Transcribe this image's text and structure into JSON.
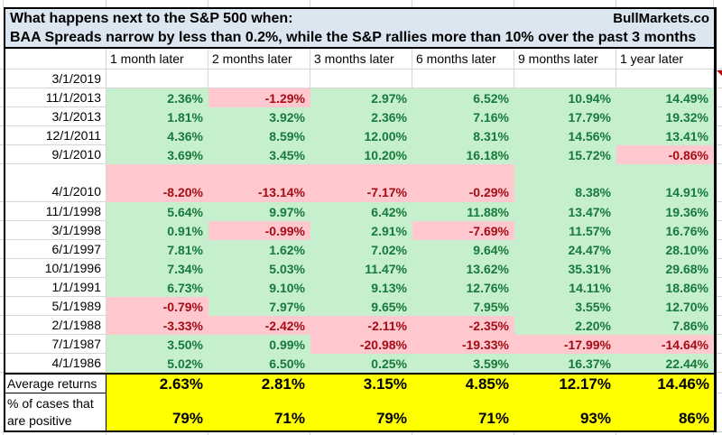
{
  "title": {
    "line1": "What happens next to the S&P 500 when:",
    "line2": "BAA Spreads narrow by less than 0.2%, while the S&P rallies more than 10% over the past 3 months",
    "brand": "BullMarkets.co"
  },
  "columns": [
    "1 month later",
    "2 months later",
    "3 months later",
    "6 months later",
    "9 months later",
    "1 year later"
  ],
  "rows": [
    {
      "date": "3/1/2019",
      "tall": false,
      "values": [
        "",
        "",
        "",
        "",
        "",
        ""
      ]
    },
    {
      "date": "11/1/2013",
      "tall": false,
      "values": [
        "2.36%",
        "-1.29%",
        "2.97%",
        "6.52%",
        "10.94%",
        "14.49%"
      ]
    },
    {
      "date": "3/1/2013",
      "tall": false,
      "values": [
        "1.81%",
        "3.92%",
        "2.36%",
        "7.16%",
        "17.79%",
        "19.32%"
      ]
    },
    {
      "date": "12/1/2011",
      "tall": false,
      "values": [
        "4.36%",
        "8.59%",
        "12.00%",
        "8.31%",
        "14.56%",
        "13.41%"
      ]
    },
    {
      "date": "9/1/2010",
      "tall": false,
      "values": [
        "3.69%",
        "3.45%",
        "10.20%",
        "16.18%",
        "15.72%",
        "-0.86%"
      ]
    },
    {
      "date": "4/1/2010",
      "tall": true,
      "values": [
        "-8.20%",
        "-13.14%",
        "-7.17%",
        "-0.29%",
        "8.38%",
        "14.91%"
      ]
    },
    {
      "date": "11/1/1998",
      "tall": false,
      "values": [
        "5.64%",
        "9.97%",
        "6.42%",
        "11.88%",
        "13.47%",
        "19.36%"
      ]
    },
    {
      "date": "3/1/1998",
      "tall": false,
      "values": [
        "0.91%",
        "-0.99%",
        "2.91%",
        "-7.69%",
        "11.57%",
        "16.76%"
      ]
    },
    {
      "date": "6/1/1997",
      "tall": false,
      "values": [
        "7.81%",
        "1.62%",
        "7.02%",
        "9.64%",
        "24.47%",
        "28.10%"
      ]
    },
    {
      "date": "10/1/1996",
      "tall": false,
      "values": [
        "7.34%",
        "5.03%",
        "11.47%",
        "13.62%",
        "35.31%",
        "29.68%"
      ]
    },
    {
      "date": "1/1/1991",
      "tall": false,
      "values": [
        "6.73%",
        "9.10%",
        "9.13%",
        "12.76%",
        "14.11%",
        "18.86%"
      ]
    },
    {
      "date": "5/1/1989",
      "tall": false,
      "values": [
        "-0.79%",
        "7.97%",
        "9.65%",
        "7.95%",
        "3.55%",
        "12.70%"
      ]
    },
    {
      "date": "2/1/1988",
      "tall": false,
      "values": [
        "-3.33%",
        "-2.42%",
        "-2.11%",
        "-2.35%",
        "2.20%",
        "7.86%"
      ]
    },
    {
      "date": "7/1/1987",
      "tall": false,
      "values": [
        "3.50%",
        "0.99%",
        "-20.98%",
        "-19.33%",
        "-17.99%",
        "-14.64%"
      ]
    },
    {
      "date": "4/1/1986",
      "tall": false,
      "values": [
        "5.02%",
        "6.50%",
        "0.25%",
        "3.59%",
        "16.37%",
        "22.44%"
      ]
    }
  ],
  "summary": {
    "avg_label": "Average returns",
    "avg": [
      "2.63%",
      "2.81%",
      "3.15%",
      "4.85%",
      "12.17%",
      "14.46%"
    ],
    "pos_label_line1": "% of cases that",
    "pos_label_line2": "are positive",
    "pos": [
      "79%",
      "71%",
      "79%",
      "71%",
      "93%",
      "86%"
    ]
  },
  "colors": {
    "header_blue": "#dce6f1",
    "green_fill": "#c6efce",
    "green_text": "#17793c",
    "red_fill": "#ffc7ce",
    "red_text": "#a50d16",
    "yellow": "#ffff00",
    "gridline": "#d6d6d6",
    "marker_red": "#c00000"
  }
}
